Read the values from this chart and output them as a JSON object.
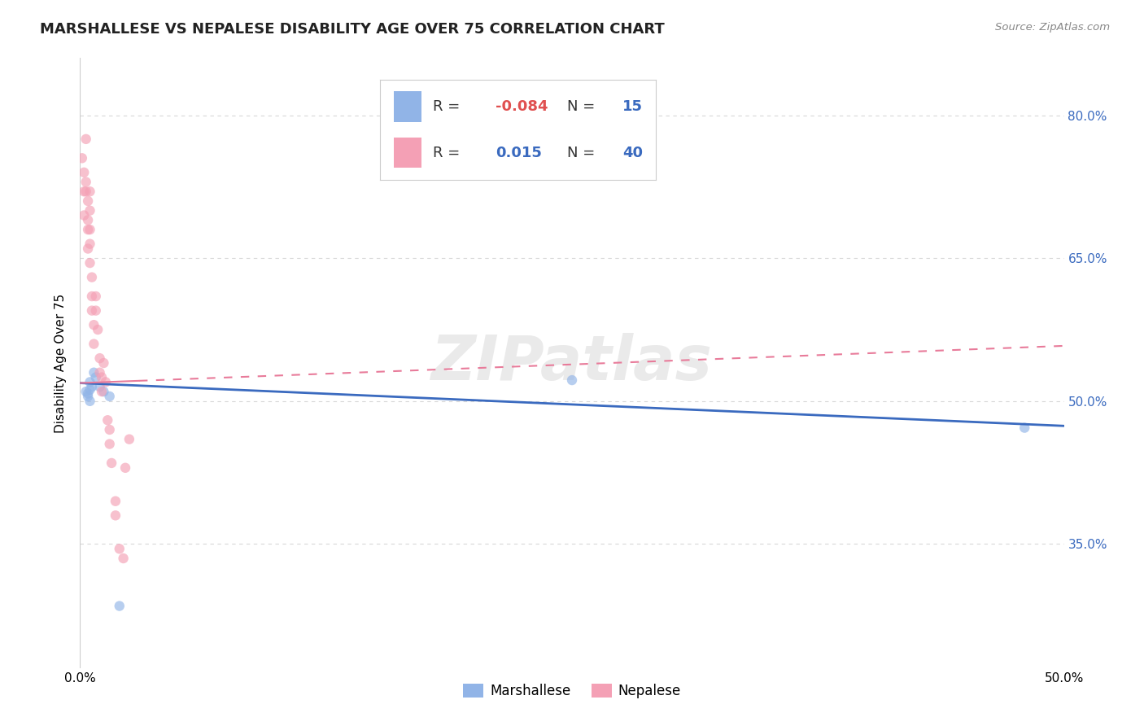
{
  "title": "MARSHALLESE VS NEPALESE DISABILITY AGE OVER 75 CORRELATION CHART",
  "source": "Source: ZipAtlas.com",
  "ylabel": "Disability Age Over 75",
  "xlim": [
    0.0,
    0.5
  ],
  "ylim": [
    0.22,
    0.86
  ],
  "xticks": [
    0.0,
    0.1,
    0.2,
    0.3,
    0.4,
    0.5
  ],
  "xticklabels": [
    "0.0%",
    "",
    "",
    "",
    "",
    "50.0%"
  ],
  "ytick_labels_right": [
    "80.0%",
    "65.0%",
    "50.0%",
    "35.0%"
  ],
  "ytick_vals_right": [
    0.8,
    0.65,
    0.5,
    0.35
  ],
  "watermark": "ZIPatlas",
  "legend_blue_R": "-0.084",
  "legend_blue_N": "15",
  "legend_pink_R": "0.015",
  "legend_pink_N": "40",
  "blue_scatter_x": [
    0.003,
    0.004,
    0.004,
    0.005,
    0.005,
    0.005,
    0.006,
    0.007,
    0.008,
    0.01,
    0.012,
    0.015,
    0.02,
    0.25,
    0.48
  ],
  "blue_scatter_y": [
    0.51,
    0.508,
    0.505,
    0.52,
    0.512,
    0.5,
    0.515,
    0.53,
    0.525,
    0.515,
    0.51,
    0.505,
    0.285,
    0.522,
    0.472
  ],
  "pink_scatter_x": [
    0.001,
    0.002,
    0.002,
    0.002,
    0.003,
    0.003,
    0.003,
    0.004,
    0.004,
    0.004,
    0.004,
    0.005,
    0.005,
    0.005,
    0.005,
    0.005,
    0.006,
    0.006,
    0.006,
    0.007,
    0.007,
    0.008,
    0.008,
    0.009,
    0.01,
    0.01,
    0.011,
    0.011,
    0.012,
    0.013,
    0.014,
    0.015,
    0.015,
    0.016,
    0.018,
    0.018,
    0.02,
    0.022,
    0.023,
    0.025
  ],
  "pink_scatter_y": [
    0.755,
    0.74,
    0.72,
    0.695,
    0.775,
    0.73,
    0.72,
    0.71,
    0.69,
    0.68,
    0.66,
    0.72,
    0.7,
    0.68,
    0.665,
    0.645,
    0.63,
    0.61,
    0.595,
    0.58,
    0.56,
    0.61,
    0.595,
    0.575,
    0.545,
    0.53,
    0.525,
    0.51,
    0.54,
    0.52,
    0.48,
    0.47,
    0.455,
    0.435,
    0.395,
    0.38,
    0.345,
    0.335,
    0.43,
    0.46
  ],
  "blue_color": "#91b4e7",
  "pink_color": "#f4a0b5",
  "blue_line_color": "#3a6abf",
  "pink_line_color": "#e87b9a",
  "grid_color": "#d8d8d8",
  "background_color": "#ffffff",
  "title_fontsize": 13,
  "axis_label_fontsize": 11,
  "tick_fontsize": 11,
  "scatter_size": 80,
  "scatter_alpha": 0.65,
  "blue_trend_x0": 0.0,
  "blue_trend_x1": 0.5,
  "blue_trend_y0": 0.519,
  "blue_trend_y1": 0.474,
  "pink_trend_x0": 0.0,
  "pink_trend_x1": 0.5,
  "pink_trend_y0": 0.519,
  "pink_trend_y1": 0.558
}
